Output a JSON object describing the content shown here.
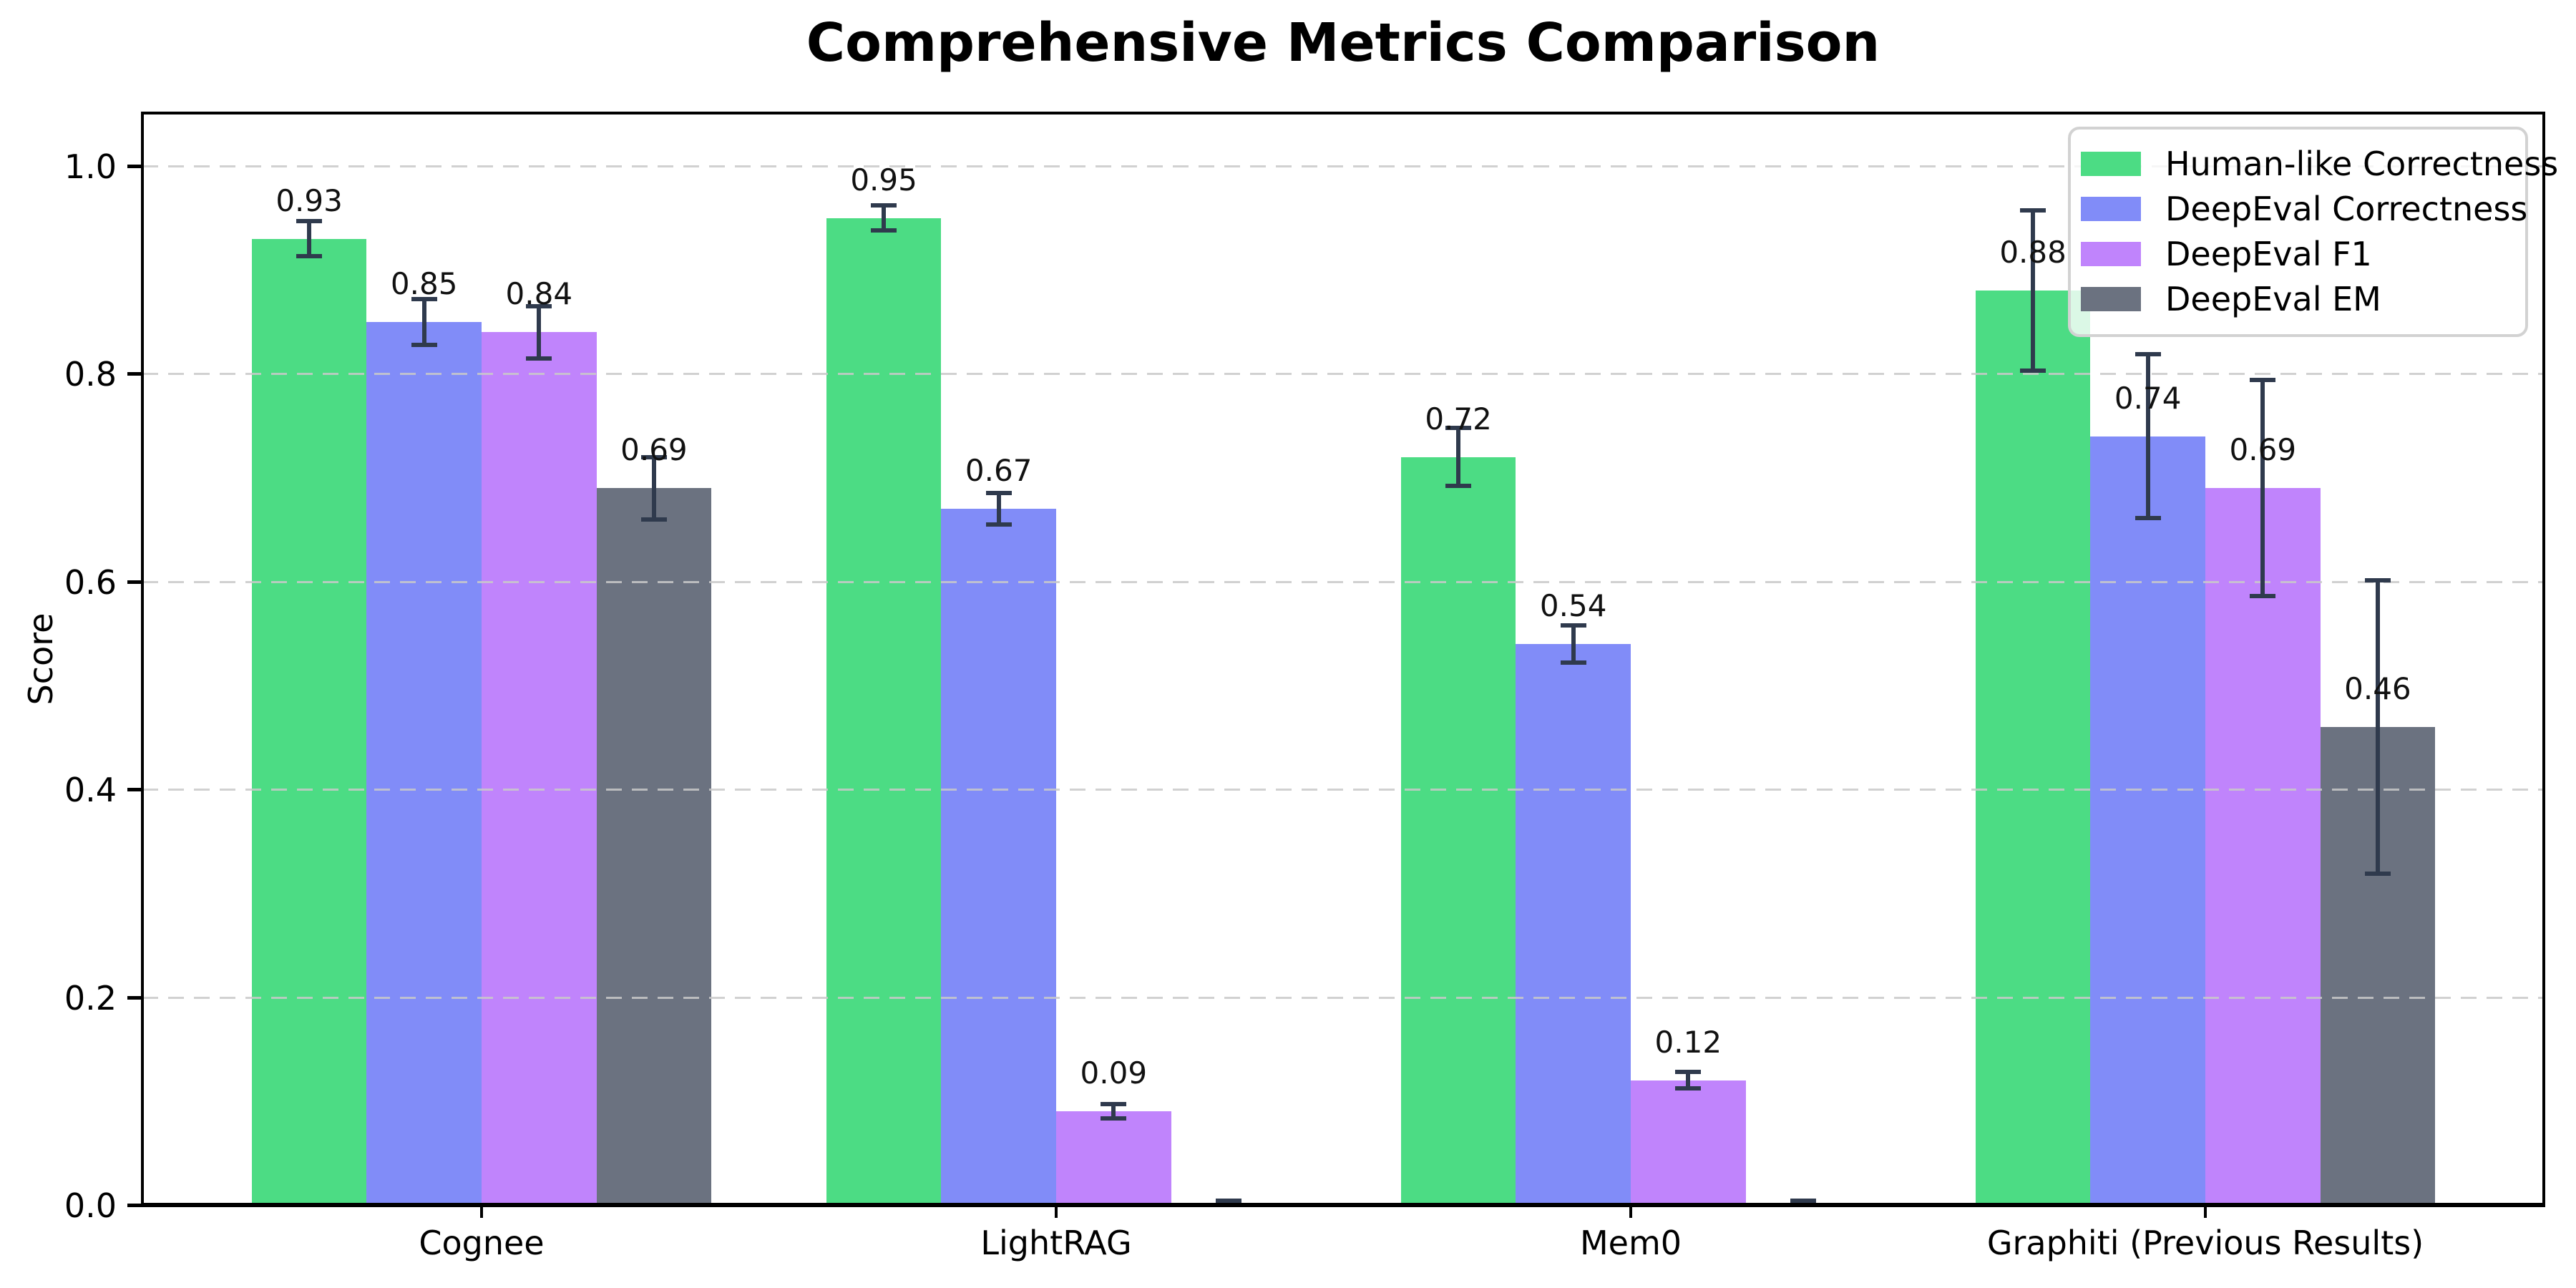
{
  "chart_data": {
    "type": "bar",
    "title": "Comprehensive Metrics Comparison",
    "ylabel": "Score",
    "xlabel": "",
    "categories": [
      "Cognee",
      "LightRAG",
      "Mem0",
      "Graphiti (Previous Results)"
    ],
    "ytick_labels": [
      "0.0",
      "0.2",
      "0.4",
      "0.6",
      "0.8",
      "1.0"
    ],
    "yticks": [
      0.0,
      0.2,
      0.4,
      0.6,
      0.8,
      1.0
    ],
    "ylim": [
      0,
      1.05
    ],
    "grid": "horizontal-dashed",
    "legend_position": "upper-right",
    "error_bar_color": "#2f3a4d",
    "series": [
      {
        "name": "Human-like Correctness",
        "color": "#4cdc84",
        "values": [
          0.93,
          0.95,
          0.72,
          0.88
        ],
        "errors": [
          0.017,
          0.012,
          0.028,
          0.077
        ],
        "labels": [
          "0.93",
          "0.95",
          "0.72",
          "0.88"
        ]
      },
      {
        "name": "DeepEval Correctness",
        "color": "#818cf8",
        "values": [
          0.85,
          0.67,
          0.54,
          0.74
        ],
        "errors": [
          0.022,
          0.015,
          0.018,
          0.079
        ],
        "labels": [
          "0.85",
          "0.67",
          "0.54",
          "0.74"
        ]
      },
      {
        "name": "DeepEval F1",
        "color": "#c084fc",
        "values": [
          0.84,
          0.09,
          0.12,
          0.69
        ],
        "errors": [
          0.025,
          0.007,
          0.008,
          0.104
        ],
        "labels": [
          "0.84",
          "0.09",
          "0.12",
          "0.69"
        ]
      },
      {
        "name": "DeepEval EM",
        "color": "#6b7280",
        "values": [
          0.69,
          0.0,
          0.0,
          0.46
        ],
        "errors": [
          0.03,
          0.004,
          0.004,
          0.141
        ],
        "labels": [
          "0.69",
          "",
          "",
          "0.46"
        ]
      }
    ]
  }
}
